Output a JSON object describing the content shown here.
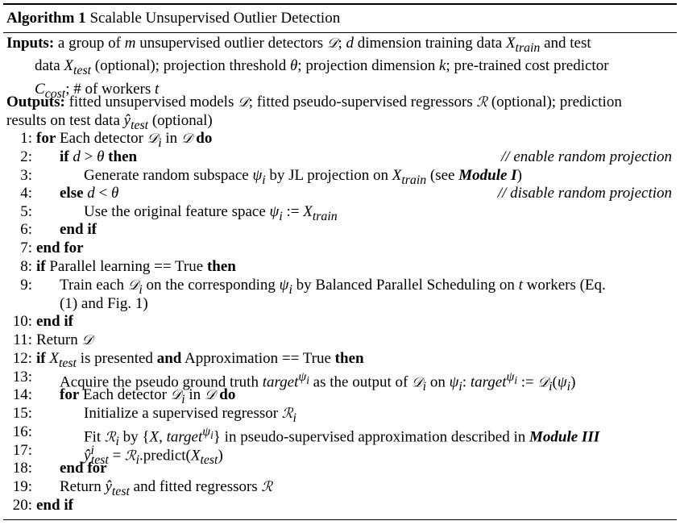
{
  "title": {
    "label": "Algorithm 1",
    "name": "Scalable Unsupervised Outlier Detection"
  },
  "inputs": {
    "label": "Inputs:",
    "line1": "a group of m unsupervised outlier detectors 𝒟; d dimension training data X_train and test",
    "line2": "data X_test (optional); projection threshold θ; projection dimension k; pre-trained cost predictor",
    "line3": "C_cost; # of workers t"
  },
  "outputs": {
    "label": "Outputs:",
    "line1": "fitted unsupervised models 𝒟; fitted pseudo-supervised regressors ℛ (optional); prediction",
    "line2": "results on test data ŷ_test (optional)"
  },
  "lines": [
    {
      "num": "1:",
      "text": "for Each detector 𝒟ᵢ in 𝒟 do"
    },
    {
      "num": "2:",
      "text": "if d > θ then",
      "comment": "// enable random projection"
    },
    {
      "num": "3:",
      "text": "Generate random subspace ψᵢ by JL projection on X_train (see Module I)"
    },
    {
      "num": "4:",
      "text": "else d < θ",
      "comment": "// disable random projection"
    },
    {
      "num": "5:",
      "text": "Use the original feature space ψᵢ := X_train"
    },
    {
      "num": "6:",
      "text": "end if"
    },
    {
      "num": "7:",
      "text": "end for"
    },
    {
      "num": "8:",
      "text": "if Parallel learning == True then"
    },
    {
      "num": "9:",
      "text": "Train each 𝒟ᵢ on the corresponding ψᵢ by Balanced Parallel Scheduling on t workers (Eq.",
      "cont": "(1) and Fig. 1)"
    },
    {
      "num": "10:",
      "text": "end if"
    },
    {
      "num": "11:",
      "text": "Return 𝒟"
    },
    {
      "num": "12:",
      "text": "if X_test is presented and Approximation == True then"
    },
    {
      "num": "13:",
      "text": "Acquire the pseudo ground truth target^ψᵢ as the output of 𝒟ᵢ on ψᵢ: target^ψᵢ := 𝒟ᵢ(ψᵢ)"
    },
    {
      "num": "14:",
      "text": "for Each detector 𝒟ᵢ in 𝒟 do"
    },
    {
      "num": "15:",
      "text": "Initialize a supervised regressor ℛᵢ"
    },
    {
      "num": "16:",
      "text": "Fit ℛᵢ by {X, target^ψᵢ} in pseudo-supervised approximation described in Module III"
    },
    {
      "num": "17:",
      "text": "ŷⁱ_test = ℛᵢ.predict(X_test)"
    },
    {
      "num": "18:",
      "text": "end for"
    },
    {
      "num": "19:",
      "text": "Return ŷ_test and fitted regressors ℛ"
    },
    {
      "num": "20:",
      "text": "end if"
    }
  ]
}
